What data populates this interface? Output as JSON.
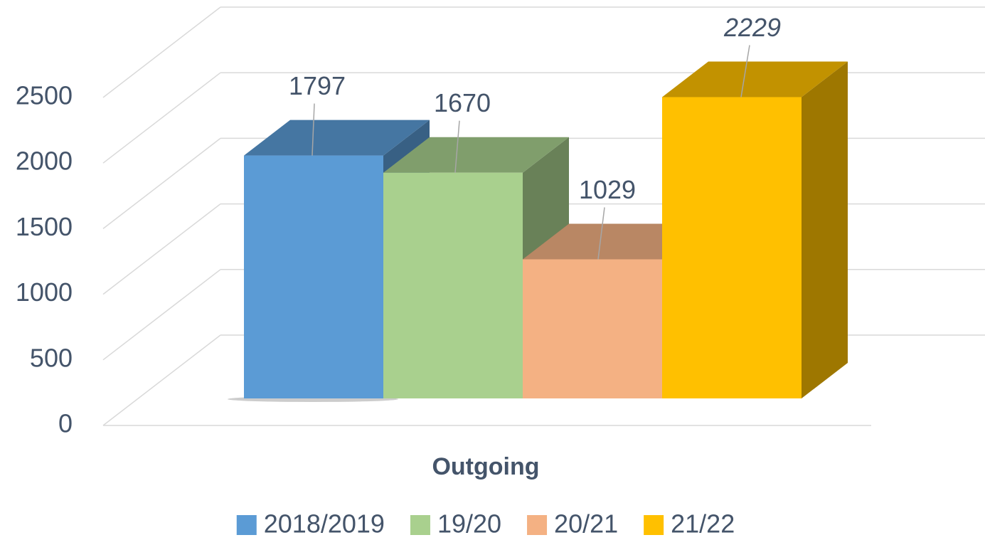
{
  "chart_data": {
    "type": "bar3d",
    "categories": [
      "Outgoing"
    ],
    "series": [
      {
        "name": "2018/2019",
        "color": "#5b9bd5",
        "values": [
          1797
        ]
      },
      {
        "name": "19/20",
        "color": "#a9d08e",
        "values": [
          1670
        ]
      },
      {
        "name": "20/21",
        "color": "#f4b183",
        "values": [
          1029
        ]
      },
      {
        "name": "21/22",
        "color": "#ffc000",
        "values": [
          2229
        ]
      }
    ],
    "ylim": [
      0,
      2500
    ],
    "yticks": [
      0,
      500,
      1000,
      1500,
      2000,
      2500
    ],
    "grid": true,
    "legend": "bottom"
  }
}
